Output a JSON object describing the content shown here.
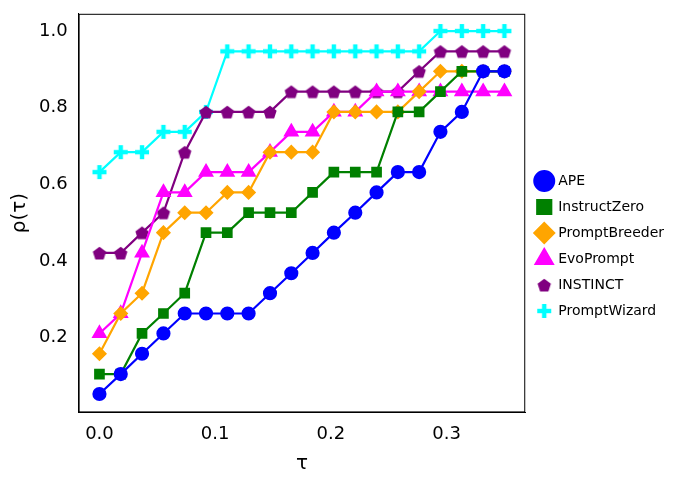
{
  "chart_data": {
    "type": "line",
    "x_label": "τ",
    "y_label": "ρ(τ)",
    "x": [
      0.0,
      0.0184,
      0.0368,
      0.0553,
      0.0737,
      0.0921,
      0.1105,
      0.1289,
      0.1474,
      0.1658,
      0.1842,
      0.2026,
      0.2211,
      0.2395,
      0.2579,
      0.2763,
      0.2947,
      0.3132,
      0.3316,
      0.35
    ],
    "xlim": [
      -0.018,
      0.368
    ],
    "xticks": [
      {
        "value": 0,
        "label": "0.0"
      },
      0.1,
      0.2,
      0.3
    ],
    "ylim": [
      0.005,
      1.045
    ],
    "yticks": [
      0.2,
      0.4,
      0.6,
      0.8,
      {
        "value": 1,
        "label": "1.0"
      }
    ],
    "grid": false,
    "legend": "right",
    "series": [
      {
        "name": "APE",
        "color": "#0000ff",
        "marker": "circle",
        "line_style": "solid",
        "values": [
          0.053,
          0.105,
          0.158,
          0.211,
          0.263,
          0.263,
          0.263,
          0.263,
          0.316,
          0.368,
          0.421,
          0.474,
          0.526,
          0.579,
          0.632,
          0.632,
          0.737,
          0.789,
          0.895,
          0.895
        ]
      },
      {
        "name": "InstructZero",
        "color": "#008000",
        "marker": "square",
        "line_style": "solid",
        "values": [
          0.105,
          0.105,
          0.211,
          0.263,
          0.316,
          0.474,
          0.474,
          0.526,
          0.526,
          0.526,
          0.579,
          0.632,
          0.632,
          0.632,
          0.789,
          0.789,
          0.842,
          0.895,
          0.895,
          0.895
        ]
      },
      {
        "name": "PromptBreeder",
        "color": "#ffa500",
        "marker": "diamond",
        "line_style": "solid",
        "values": [
          0.158,
          0.263,
          0.316,
          0.474,
          0.526,
          0.526,
          0.579,
          0.579,
          0.684,
          0.684,
          0.684,
          0.789,
          0.789,
          0.789,
          0.789,
          0.842,
          0.895,
          0.895,
          0.895,
          0.895
        ]
      },
      {
        "name": "EvoPrompt",
        "color": "#ff00ff",
        "marker": "triangle",
        "line_style": "solid",
        "values": [
          0.211,
          0.263,
          0.421,
          0.579,
          0.579,
          0.632,
          0.632,
          0.632,
          0.684,
          0.737,
          0.737,
          0.789,
          0.789,
          0.842,
          0.842,
          0.842,
          0.842,
          0.842,
          0.842,
          0.842
        ]
      },
      {
        "name": "INSTINCT",
        "color": "#800080",
        "marker": "pentagon",
        "line_style": "solid",
        "values": [
          0.421,
          0.421,
          0.474,
          0.526,
          0.684,
          0.789,
          0.789,
          0.789,
          0.789,
          0.842,
          0.842,
          0.842,
          0.842,
          0.842,
          0.842,
          0.895,
          0.947,
          0.947,
          0.947,
          0.947
        ]
      },
      {
        "name": "PromptWizard",
        "color": "#00ffff",
        "marker": "plus",
        "line_style": "solid",
        "values": [
          0.632,
          0.684,
          0.684,
          0.737,
          0.737,
          0.789,
          0.947,
          0.947,
          0.947,
          0.947,
          0.947,
          0.947,
          0.947,
          0.947,
          0.947,
          0.947,
          1.0,
          1.0,
          1.0,
          1.0
        ]
      }
    ]
  }
}
